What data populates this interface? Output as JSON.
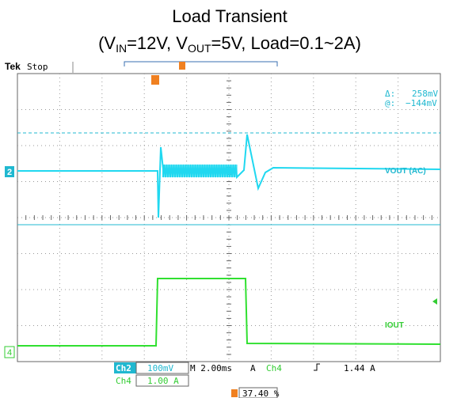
{
  "title": {
    "line1": "Load Transient",
    "line2": [
      "(V",
      "IN",
      "=12V, V",
      "OUT",
      "=5V, Load=0.1~2A)"
    ]
  },
  "scope": {
    "brand": "Tek",
    "state": "Stop",
    "delta_label": "Δ:",
    "delta_value": "258mV",
    "at_label": "@:",
    "at_value": "−144mV",
    "ch2_marker": "2",
    "ch4_marker": "4",
    "ch2_name": "VOUT (AC)",
    "ch4_name": "IOUT",
    "readout": {
      "ch2": "Ch2",
      "ch2_scale": "100mV",
      "timebase": "M 2.00ms",
      "trig_mode": "A",
      "trig_ch": "Ch4",
      "trig_level": "1.44 A",
      "ch4": "Ch4",
      "ch4_scale": "1.00 A",
      "trig_pos": "37.40 %"
    }
  }
}
